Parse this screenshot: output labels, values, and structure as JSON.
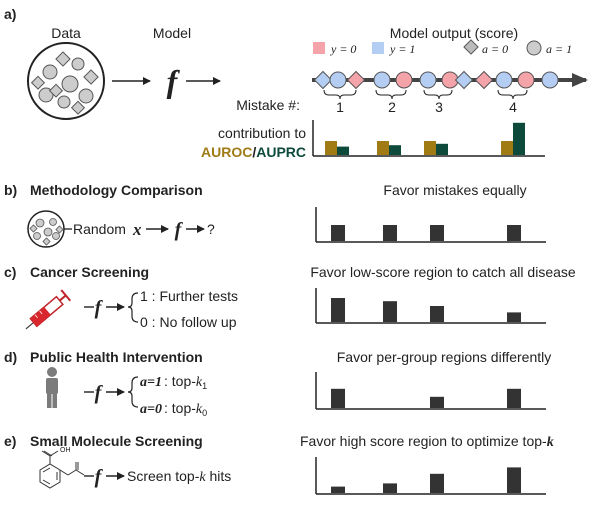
{
  "panel_a": {
    "letter": "a)",
    "data_label": "Data",
    "model_label": "Model",
    "f_symbol": "f",
    "output_title": "Model output (score)",
    "legend": [
      {
        "text": "y = 0",
        "color": "#f4a3a8"
      },
      {
        "text": "y = 1",
        "color": "#b4cdf2"
      },
      {
        "text": "a = 0",
        "shape": "diamond"
      },
      {
        "text": "a = 1",
        "shape": "circle"
      }
    ],
    "mistake_label": "Mistake #:",
    "mistake_numbers": [
      "1",
      "2",
      "3",
      "4"
    ],
    "contribution_label": "contribution to",
    "auroc_label": "AUROC",
    "slash": "/",
    "auprc_label": "AUPRC",
    "auroc_color": "#a07b14",
    "auprc_color": "#0e4a3c",
    "contribution_values": {
      "auroc": [
        1,
        1,
        1,
        1
      ],
      "auprc": [
        0.6,
        0.7,
        0.8,
        2.3
      ]
    }
  },
  "panel_b": {
    "letter": "b)",
    "title": "Methodology Comparison",
    "flow_text": "Random",
    "x_symbol": "x",
    "f_symbol": "f",
    "question": "?",
    "favor_text": "Favor mistakes equally",
    "values": [
      1,
      1,
      1,
      1
    ]
  },
  "panel_c": {
    "letter": "c)",
    "title": "Cancer Screening",
    "f_symbol": "f",
    "outcome_1": "1 : Further tests",
    "outcome_0": "0 : No follow up",
    "favor_text": "Favor low-score region to catch all disease",
    "values": [
      1.5,
      1.3,
      1.0,
      0.6
    ]
  },
  "panel_d": {
    "letter": "d)",
    "title": "Public Health Intervention",
    "f_symbol": "f",
    "group_1": "a=1",
    "group_1_text": ": top-",
    "k_symbol": "k",
    "sub_1": "1",
    "group_0": "a=0",
    "group_0_text": ": top-",
    "sub_0": "0",
    "favor_text": "Favor per-group regions differently",
    "values": [
      1.2,
      0,
      0.7,
      1.2
    ]
  },
  "panel_e": {
    "letter": "e)",
    "title": "Small Molecule Screening",
    "f_symbol": "f",
    "screen_text": "Screen top-",
    "k_symbol": "k",
    "hits_text": " hits",
    "favor_text": "Favor high score region to optimize top-",
    "favor_k": "k",
    "oh_label": "OH",
    "values": [
      0.4,
      0.6,
      1.2,
      1.6
    ]
  }
}
